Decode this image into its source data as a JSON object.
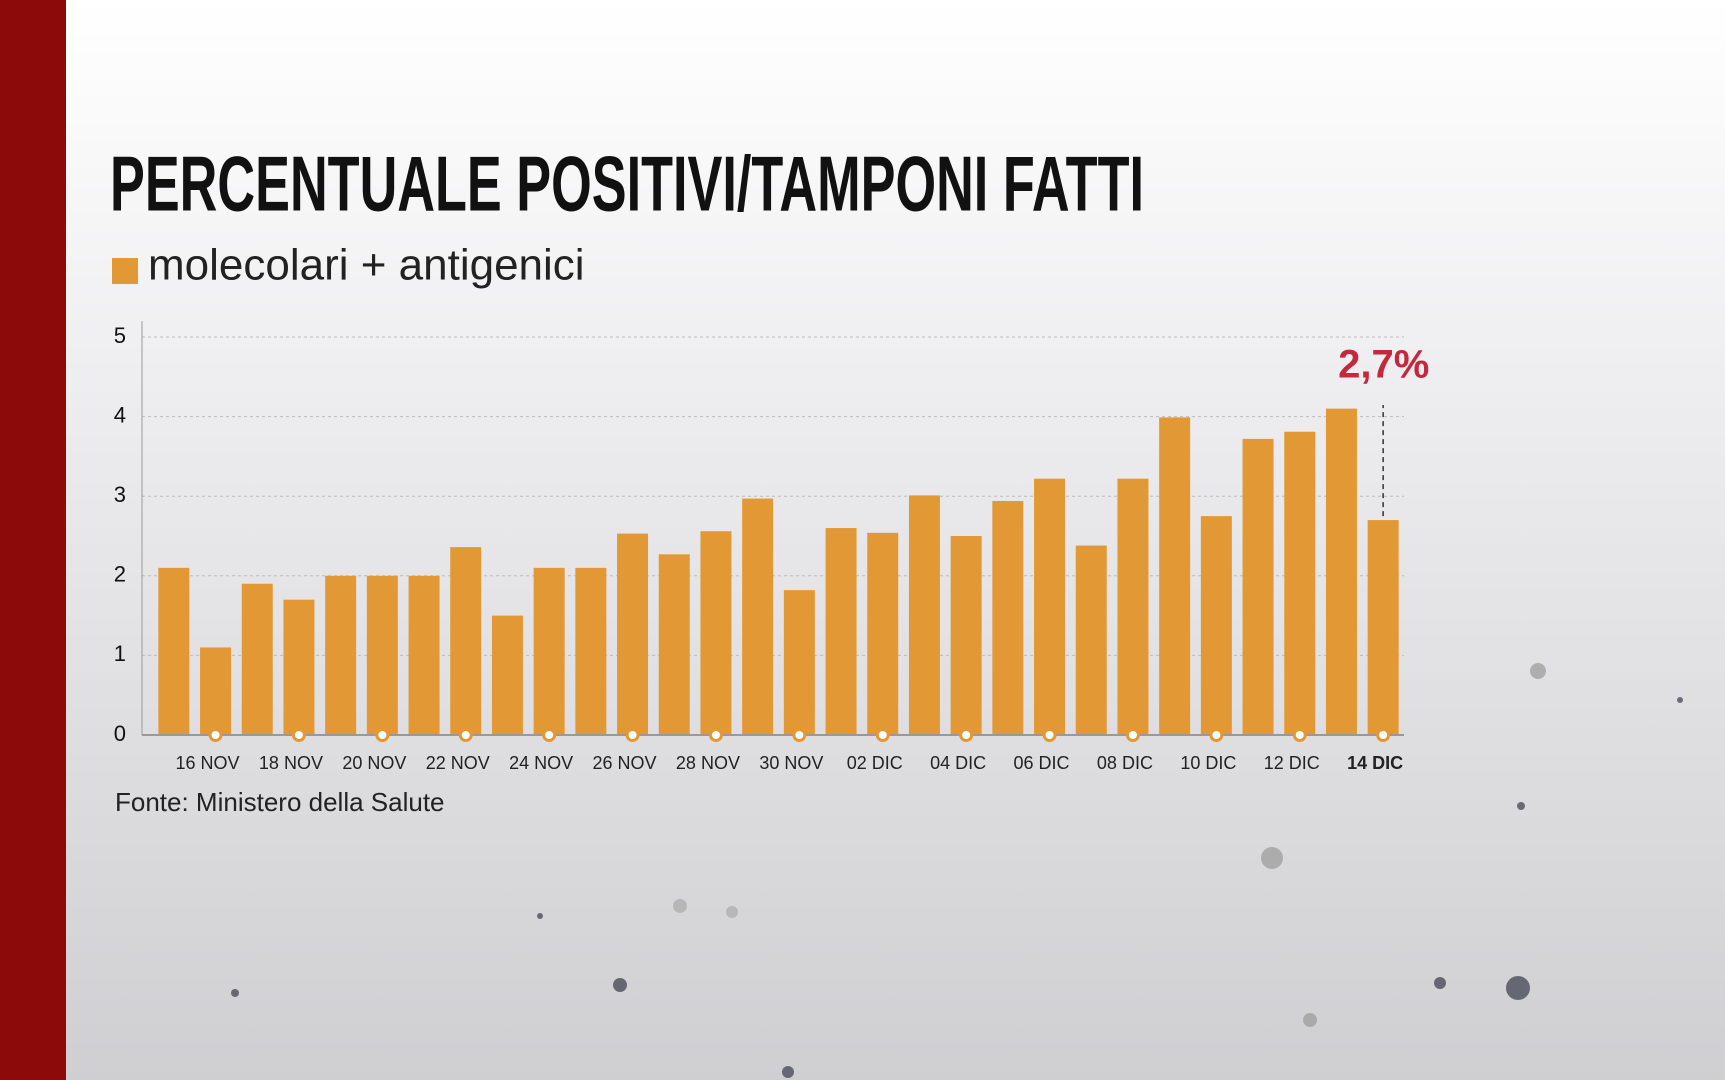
{
  "chart_data": {
    "type": "bar",
    "title": "PERCENTUALE POSITIVI/TAMPONI FATTI",
    "categories": [
      null,
      "16 NOV",
      null,
      "18 NOV",
      null,
      "20 NOV",
      null,
      "22 NOV",
      null,
      "24 NOV",
      null,
      "26 NOV",
      null,
      "28 NOV",
      null,
      "30 NOV",
      null,
      "02 DIC",
      null,
      "04 DIC",
      null,
      "06 DIC",
      null,
      "08 DIC",
      null,
      "10 DIC",
      null,
      "12 DIC",
      null,
      "14 DIC"
    ],
    "series": [
      {
        "name": "molecolari + antigenici",
        "color": "#e39836",
        "values": [
          2.1,
          1.1,
          1.9,
          1.7,
          2.0,
          2.0,
          2.0,
          2.36,
          1.5,
          2.1,
          2.1,
          2.53,
          2.27,
          2.56,
          2.97,
          1.82,
          2.6,
          2.54,
          3.01,
          2.5,
          2.94,
          3.22,
          2.38,
          3.22,
          3.99,
          2.75,
          3.72,
          3.81,
          4.1,
          2.7
        ]
      }
    ],
    "value_labels": [
      null,
      null,
      null,
      null,
      null,
      null,
      null,
      null,
      null,
      null,
      null,
      null,
      null,
      null,
      null,
      null,
      null,
      null,
      null,
      null,
      null,
      null,
      null,
      null,
      null,
      null,
      null,
      null,
      null,
      "2,7%"
    ],
    "ylim": [
      0,
      5
    ],
    "yticks": [
      0,
      1,
      2,
      3,
      4,
      5
    ],
    "grid": true,
    "source": "Fonte: Ministero della Salute"
  }
}
